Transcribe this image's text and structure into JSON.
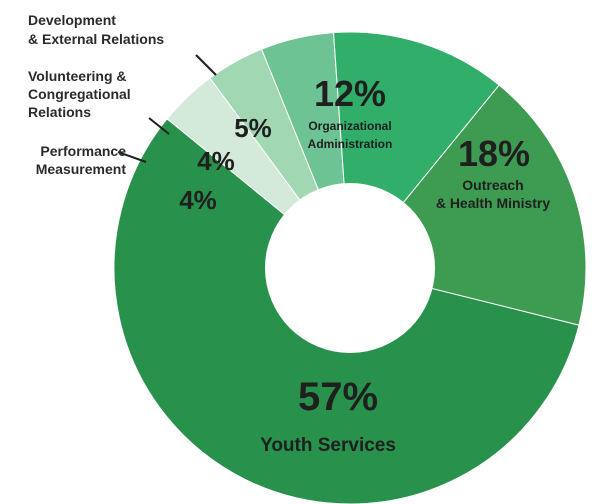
{
  "chart_data": {
    "type": "pie",
    "donut": true,
    "slices": [
      {
        "key": "youth",
        "value": 57,
        "value_label": "57%",
        "label": [
          "Youth Services"
        ],
        "color": "#28924d",
        "label_pos": "inside"
      },
      {
        "key": "performance",
        "value": 4,
        "value_label": "4%",
        "label": [
          "Performance",
          "Measurement"
        ],
        "color": "#d3eadb",
        "label_pos": "outside"
      },
      {
        "key": "volunteering",
        "value": 4,
        "value_label": "4%",
        "label": [
          "Volunteering &",
          "Congregational",
          "Relations"
        ],
        "color": "#a2d7b4",
        "label_pos": "outside"
      },
      {
        "key": "development",
        "value": 5,
        "value_label": "5%",
        "label": [
          "Development",
          "& External Relations"
        ],
        "color": "#6ec394",
        "label_pos": "outside"
      },
      {
        "key": "organizational",
        "value": 12,
        "value_label": "12%",
        "label": [
          "Organizational",
          "Administration"
        ],
        "color": "#31ae6a",
        "label_pos": "inside"
      },
      {
        "key": "outreach",
        "value": 18,
        "value_label": "18%",
        "label": [
          "Outreach",
          "& Health Ministry"
        ],
        "color": "#3e9c52",
        "label_pos": "inside"
      }
    ]
  }
}
